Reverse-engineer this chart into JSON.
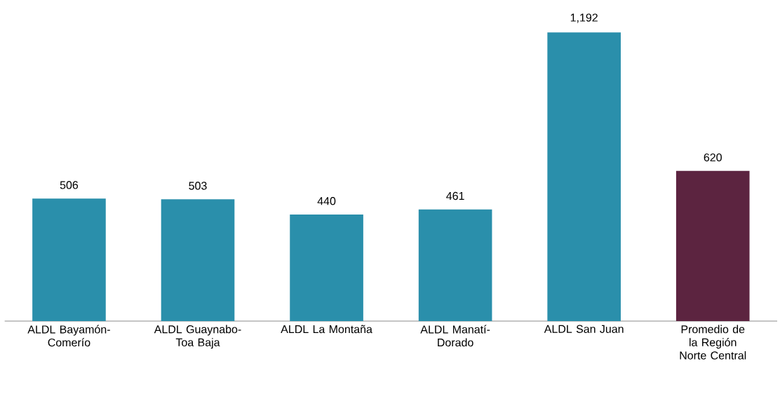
{
  "chart_data": {
    "type": "bar",
    "categories": [
      "ALDL Bayamón-Comerío",
      "ALDL Guaynabo-Toa Baja",
      "ALDL La Montaña",
      "ALDL Manatí-Dorado",
      "ALDL San Juan",
      "Promedio de la Región Norte Central"
    ],
    "values": [
      506,
      503,
      440,
      461,
      1192,
      620
    ],
    "colors": [
      "#2a8fab",
      "#2a8fab",
      "#2a8fab",
      "#2a8fab",
      "#2a8fab",
      "#5c2440"
    ],
    "value_labels": [
      "506",
      "503",
      "440",
      "461",
      "1,192",
      "620"
    ]
  }
}
